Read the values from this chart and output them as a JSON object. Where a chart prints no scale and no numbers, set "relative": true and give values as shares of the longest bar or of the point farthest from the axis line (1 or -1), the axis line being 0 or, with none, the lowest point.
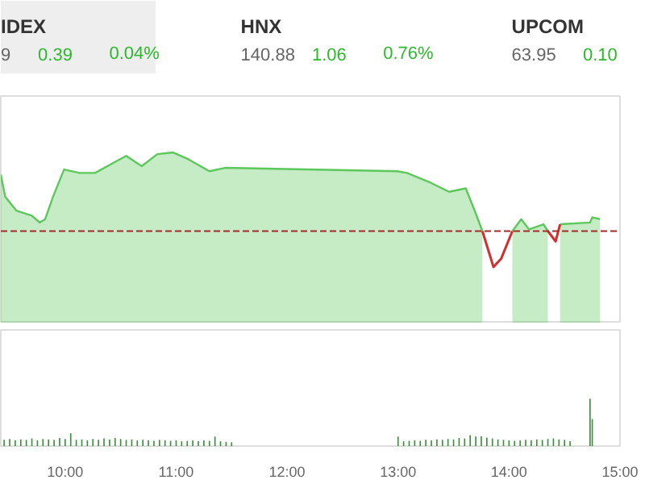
{
  "chart_data": [
    {
      "type": "other",
      "annotations": [
        "IDEX",
        "9",
        "0.39",
        "0.04%",
        "HNX",
        "140.88",
        "1.06",
        "0.76%",
        "UPCOM",
        "63.95",
        "0.10"
      ]
    },
    {
      "type": "line",
      "relative": true,
      "xlim": [
        9.42,
        15.0
      ],
      "x": [
        9.42,
        9.46,
        9.56,
        9.7,
        9.77,
        9.82,
        9.89,
        9.99,
        10.13,
        10.27,
        10.41,
        10.55,
        10.69,
        10.83,
        10.97,
        11.11,
        11.3,
        11.44,
        12.99,
        13.08,
        13.27,
        13.46,
        13.61,
        13.69,
        13.76,
        13.86,
        13.93,
        14.03,
        14.11,
        14.18,
        14.31,
        14.35,
        14.42,
        14.46,
        14.73,
        14.75,
        14.82
      ],
      "series": [
        {
          "type": "area",
          "color": "#5cc85c",
          "values": [
            0.87,
            0.74,
            0.66,
            0.63,
            0.59,
            0.61,
            0.74,
            0.9,
            0.88,
            0.88,
            0.93,
            0.98,
            0.92,
            0.99,
            1.0,
            0.96,
            0.89,
            0.91,
            0.89,
            0.88,
            0.83,
            0.77,
            0.79,
            0.66,
            0.54,
            null,
            null,
            0.54,
            0.61,
            0.55,
            0.58,
            0.54,
            null,
            0.58,
            0.59,
            0.62,
            0.61
          ]
        },
        {
          "type": "line",
          "color": "#d32f2f",
          "values": [
            null,
            null,
            null,
            null,
            null,
            null,
            null,
            null,
            null,
            null,
            null,
            null,
            null,
            null,
            null,
            null,
            null,
            null,
            null,
            null,
            null,
            null,
            null,
            null,
            0.54,
            0.33,
            0.38,
            0.54,
            null,
            null,
            null,
            0.54,
            0.48,
            0.58,
            null,
            null,
            null
          ]
        }
      ],
      "ref_lines": [
        {
          "axis": "y",
          "value": 0.54,
          "color": "#a52a2a",
          "line_style": "dashed"
        }
      ]
    },
    {
      "type": "bar",
      "relative": true,
      "color": "#3a8f3a",
      "xlim": [
        9.42,
        15.0
      ],
      "xticks": [
        {
          "value": 10,
          "label": "10:00"
        },
        {
          "value": 11,
          "label": "11:00"
        },
        {
          "value": 12,
          "label": "12:00"
        },
        {
          "value": 13,
          "label": "13:00"
        },
        {
          "value": 14,
          "label": "14:00"
        },
        {
          "value": 15,
          "label": "15:00"
        }
      ],
      "x": [
        9.45,
        9.5,
        9.55,
        9.6,
        9.65,
        9.7,
        9.75,
        9.8,
        9.85,
        9.9,
        9.95,
        10,
        10.05,
        10.1,
        10.15,
        10.2,
        10.25,
        10.3,
        10.35,
        10.4,
        10.45,
        10.5,
        10.55,
        10.6,
        10.65,
        10.7,
        10.75,
        10.8,
        10.85,
        10.9,
        10.95,
        11,
        11.05,
        11.1,
        11.15,
        11.2,
        11.25,
        11.3,
        11.35,
        11.4,
        11.45,
        11.5,
        13,
        13.05,
        13.1,
        13.15,
        13.2,
        13.25,
        13.3,
        13.35,
        13.4,
        13.45,
        13.5,
        13.55,
        13.6,
        13.65,
        13.7,
        13.75,
        13.8,
        13.85,
        13.9,
        13.95,
        14,
        14.05,
        14.1,
        14.15,
        14.2,
        14.25,
        14.3,
        14.35,
        14.4,
        14.45,
        14.5,
        14.55,
        14.73,
        14.75
      ],
      "values": [
        0.13,
        0.15,
        0.12,
        0.14,
        0.13,
        0.16,
        0.12,
        0.15,
        0.14,
        0.13,
        0.17,
        0.15,
        0.27,
        0.13,
        0.14,
        0.12,
        0.15,
        0.13,
        0.16,
        0.14,
        0.17,
        0.15,
        0.13,
        0.14,
        0.12,
        0.13,
        0.12,
        0.11,
        0.13,
        0.12,
        0.11,
        0.12,
        0.1,
        0.11,
        0.12,
        0.1,
        0.12,
        0.11,
        0.2,
        0.1,
        0.09,
        0.08,
        0.2,
        0.1,
        0.11,
        0.12,
        0.11,
        0.13,
        0.12,
        0.14,
        0.13,
        0.15,
        0.14,
        0.17,
        0.16,
        0.23,
        0.2,
        0.21,
        0.18,
        0.16,
        0.14,
        0.13,
        0.12,
        0.11,
        0.12,
        0.13,
        0.12,
        0.14,
        0.13,
        0.15,
        0.16,
        0.14,
        0.13,
        0.1,
        1.0,
        0.57
      ]
    }
  ]
}
